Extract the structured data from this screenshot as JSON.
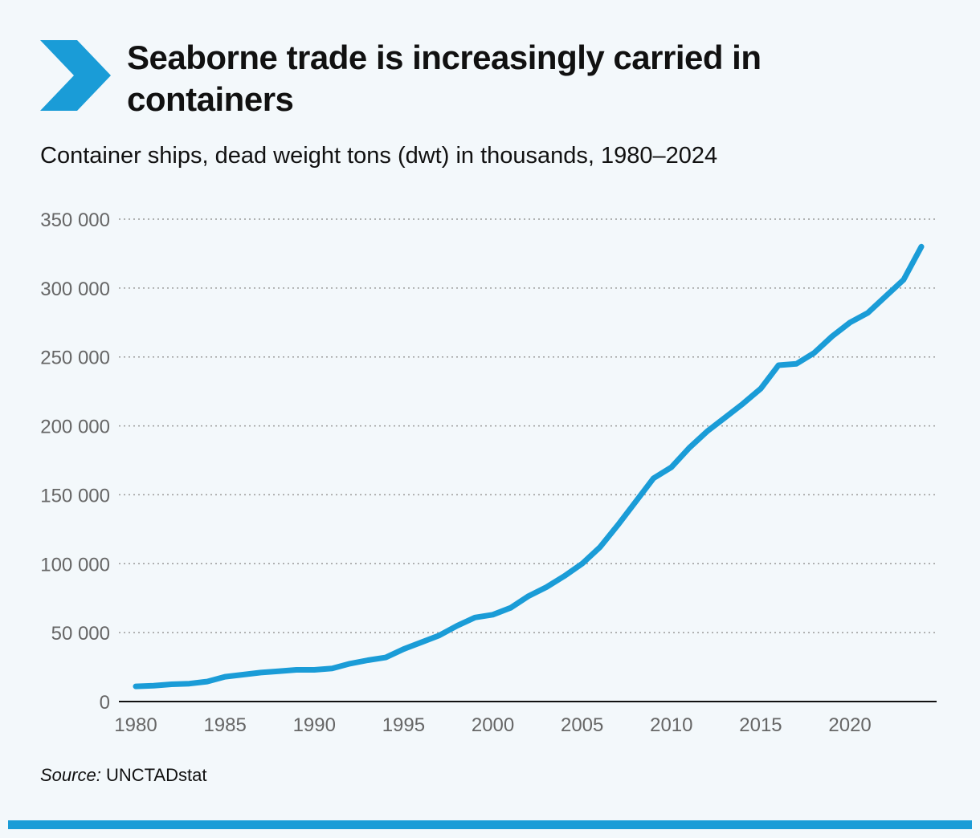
{
  "title": "Seaborne trade is increasingly carried in containers",
  "subtitle": "Container ships, dead weight tons (dwt) in thousands, 1980–2024",
  "source_label": "Source:",
  "source_text": " UNCTADstat",
  "colors": {
    "accent": "#1a9cd7",
    "line": "#1a9cd7",
    "grid": "#9a9a9a",
    "axis": "#111111",
    "background": "#f3f8fb"
  },
  "logo_icon": "chevron-right-icon",
  "chart_data": {
    "type": "line",
    "title": "Seaborne trade is increasingly carried in containers",
    "xlabel": "",
    "ylabel": "",
    "xlim": [
      1980,
      2024
    ],
    "ylim": [
      0,
      350000
    ],
    "y_ticks": [
      0,
      50000,
      100000,
      150000,
      200000,
      250000,
      300000,
      350000
    ],
    "y_tick_labels": [
      "0",
      "50 000",
      "100 000",
      "150 000",
      "200 000",
      "250 000",
      "300 000",
      "350 000"
    ],
    "x_ticks": [
      1980,
      1985,
      1990,
      1995,
      2000,
      2005,
      2010,
      2015,
      2020
    ],
    "x_tick_labels": [
      "1980",
      "1985",
      "1990",
      "1995",
      "2000",
      "2005",
      "2010",
      "2015",
      "2020"
    ],
    "grid": "horizontal dotted",
    "series": [
      {
        "x": [
          1980,
          1981,
          1982,
          1983,
          1984,
          1985,
          1986,
          1987,
          1988,
          1989,
          1990,
          1991,
          1992,
          1993,
          1994,
          1995,
          1996,
          1997,
          1998,
          1999,
          2000,
          2001,
          2002,
          2003,
          2004,
          2005,
          2006,
          2007,
          2008,
          2009,
          2010,
          2011,
          2012,
          2013,
          2014,
          2015,
          2016,
          2017,
          2018,
          2019,
          2020,
          2021,
          2022,
          2023,
          2024
        ],
        "values": [
          11000,
          11500,
          12500,
          13000,
          14500,
          18000,
          19500,
          21000,
          22000,
          23000,
          23000,
          24000,
          27500,
          30000,
          32000,
          38000,
          43000,
          48000,
          55000,
          61000,
          63000,
          68000,
          76500,
          83000,
          91000,
          100000,
          112000,
          128000,
          145000,
          162000,
          170000,
          184000,
          196000,
          206000,
          216000,
          227000,
          244000,
          245000,
          253000,
          265000,
          275000,
          282000,
          294000,
          306000,
          330000
        ]
      }
    ]
  }
}
